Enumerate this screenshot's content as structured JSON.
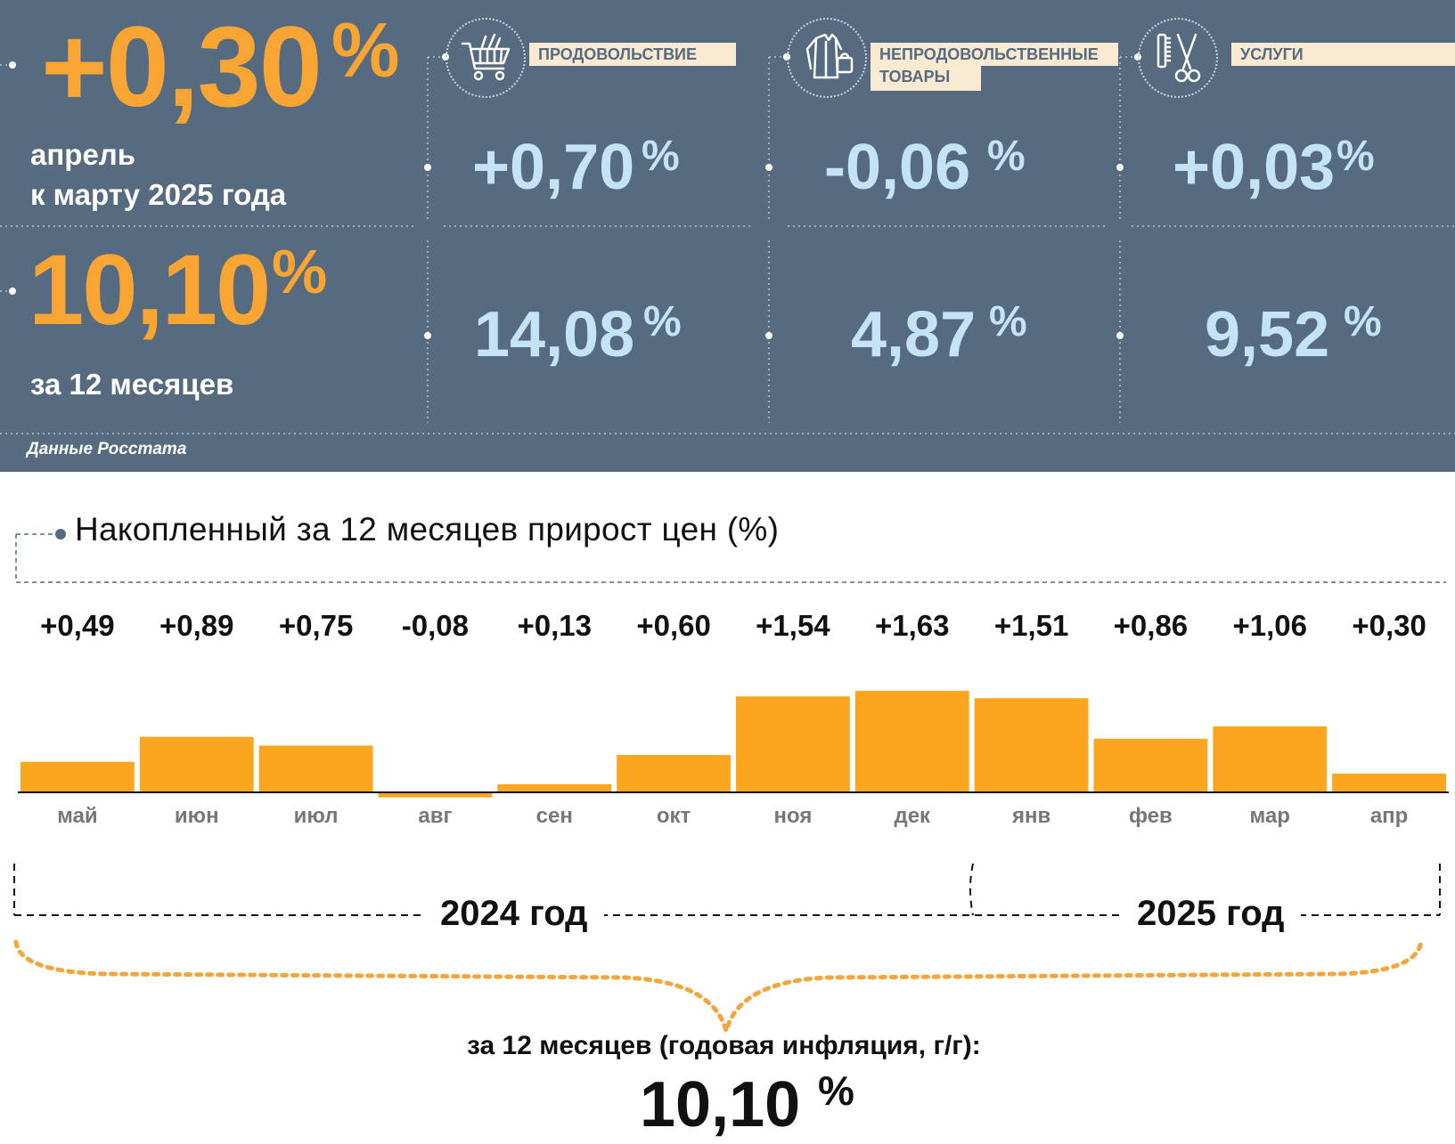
{
  "summary": {
    "monthly_value": "+0,30",
    "monthly_unit": "%",
    "monthly_caption_1": "апрель",
    "monthly_caption_2": "к марту 2025 года",
    "annual_value": "10,10",
    "annual_unit": "%",
    "annual_caption": "за 12 месяцев"
  },
  "categories": [
    {
      "label": "ПРОДОВОЛЬСТВИЕ",
      "icon": "shopping-cart-icon",
      "monthly": "+0,70",
      "annual": "14,08",
      "unit": "%"
    },
    {
      "label_line1": "НЕПРОДОВОЛЬСТВЕННЫЕ",
      "label_line2": "ТОВАРЫ",
      "icon": "clothes-bag-icon",
      "monthly": "-0,06",
      "annual": "4,87",
      "unit": "%"
    },
    {
      "label": "УСЛУГИ",
      "icon": "comb-scissors-icon",
      "monthly": "+0,03",
      "annual": "9,52",
      "unit": "%"
    }
  ],
  "source": "Данные Росстата",
  "colors": {
    "panel": "#566b80",
    "accent_orange": "#f9a533",
    "light_blue": "#c5e3f6",
    "bar": "#fca61f"
  },
  "chart_data": {
    "type": "bar",
    "title": "Накопленный за 12 месяцев прирост цен (%)",
    "categories": [
      "май",
      "июн",
      "июл",
      "авг",
      "сен",
      "окт",
      "ноя",
      "дек",
      "янв",
      "фев",
      "мар",
      "апр"
    ],
    "values": [
      0.49,
      0.89,
      0.75,
      -0.08,
      0.13,
      0.6,
      1.54,
      1.63,
      1.51,
      0.86,
      1.06,
      0.3
    ],
    "value_labels": [
      "+0,49",
      "+0,89",
      "+0,75",
      "-0,08",
      "+0,13",
      "+0,60",
      "+1,54",
      "+1,63",
      "+1,51",
      "+0,86",
      "+1,06",
      "+0,30"
    ],
    "year_groups": [
      {
        "label": "2024 год",
        "from": "май",
        "to": "дек"
      },
      {
        "label": "2025 год",
        "from": "янв",
        "to": "апр"
      }
    ],
    "annual_caption": "за 12 месяцев (годовая инфляция, г/г):",
    "annual_value": "10,10",
    "annual_unit": "%"
  }
}
